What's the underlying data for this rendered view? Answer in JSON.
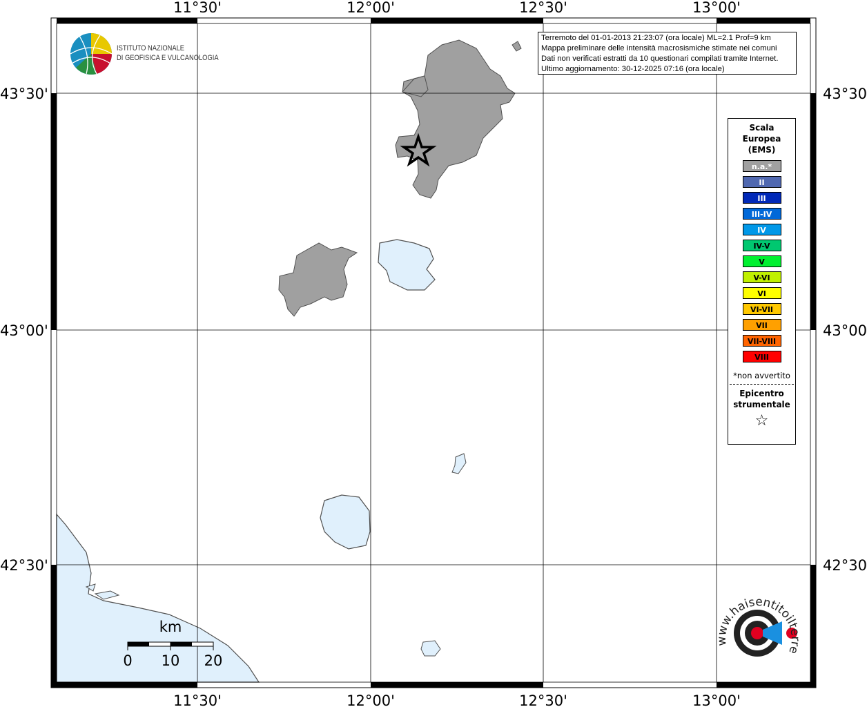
{
  "axes": {
    "lon_ticks": [
      "11°30'",
      "12°00'",
      "12°30'",
      "13°00'"
    ],
    "lat_ticks": [
      "43°30'",
      "43°00'",
      "42°30'"
    ]
  },
  "logo": {
    "line1": "ISTITUTO NAZIONALE",
    "line2": "DI GEOFISICA E VULCANOLOGIA"
  },
  "info": {
    "line1": "Terremoto del 01-01-2013 21:23:07 (ora locale) ML=2.1 Prof=9 km",
    "line2": "Mappa preliminare delle intensità macrosismiche stimate nei comuni",
    "line3": "Dati non verificati estratti da 10 questionari compilati tramite Internet.",
    "line4": "Ultimo aggiornamento: 30-12-2025 07:16 (ora locale)"
  },
  "legend": {
    "title": [
      "Scala",
      "Europea",
      "(EMS)"
    ],
    "items": [
      {
        "label": "n.a.*",
        "color": "#a0a0a0",
        "text": "#ffffff"
      },
      {
        "label": "II",
        "color": "#5068b0",
        "text": "#ffffff"
      },
      {
        "label": "III",
        "color": "#0028b8",
        "text": "#ffffff"
      },
      {
        "label": "III-IV",
        "color": "#0068d8",
        "text": "#ffffff"
      },
      {
        "label": "IV",
        "color": "#0098e8",
        "text": "#ffffff"
      },
      {
        "label": "IV-V",
        "color": "#00c870",
        "text": "#000000"
      },
      {
        "label": "V",
        "color": "#00f030",
        "text": "#000000"
      },
      {
        "label": "V-VI",
        "color": "#c0f000",
        "text": "#000000"
      },
      {
        "label": "VI",
        "color": "#ffff00",
        "text": "#000000"
      },
      {
        "label": "VI-VII",
        "color": "#ffc800",
        "text": "#000000"
      },
      {
        "label": "VII",
        "color": "#ffa000",
        "text": "#000000"
      },
      {
        "label": "VII-VIII",
        "color": "#ff6400",
        "text": "#000000"
      },
      {
        "label": "VIII",
        "color": "#ff0000",
        "text": "#000000"
      }
    ],
    "note": "*non avvertito",
    "epicenter": [
      "Epicentro",
      "strumentale"
    ],
    "epicenter_symbol": "☆"
  },
  "scalebar": {
    "unit": "km",
    "labels": [
      "0",
      "10",
      "20"
    ]
  },
  "haisentito": {
    "text": "www.haisentitoilterremoto.it"
  },
  "colors": {
    "water": "#e0f0fc",
    "felt_na": "#a0a0a0",
    "coast": "#505050"
  }
}
